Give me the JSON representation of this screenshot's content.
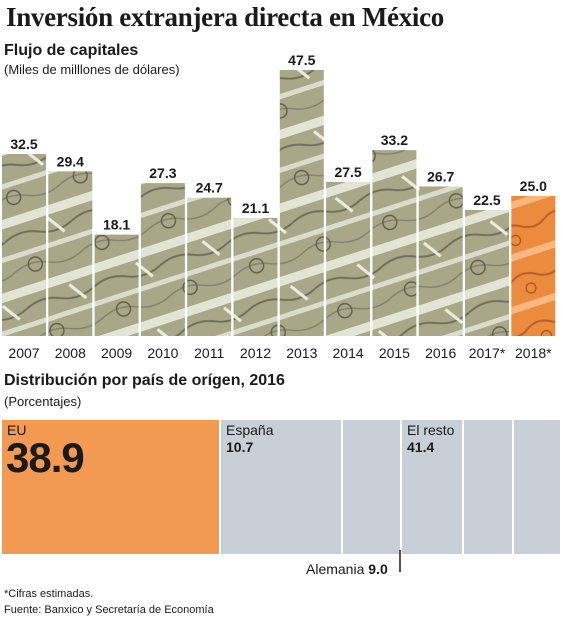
{
  "title": "Inversión extranjera directa en México",
  "chart_data": [
    {
      "type": "bar",
      "title": "Flujo de capitales",
      "subtitle": "(Miles de milllones de dólares)",
      "categories": [
        "2007",
        "2008",
        "2009",
        "2010",
        "2011",
        "2012",
        "2013",
        "2014",
        "2015",
        "2016",
        "2017*",
        "2018*"
      ],
      "values": [
        32.5,
        29.4,
        18.1,
        27.3,
        24.7,
        21.1,
        47.5,
        27.5,
        33.2,
        26.7,
        22.5,
        25.0
      ],
      "value_labels": [
        "32.5",
        "29.4",
        "18.1",
        "27.3",
        "24.7",
        "21.1",
        "47.5",
        "27.5",
        "33.2",
        "26.7",
        "22.5",
        "25.0"
      ],
      "highlight_index": 11,
      "bar_fill": "banknote photo",
      "highlight_color": "#f0883a",
      "ylim": [
        0,
        50
      ]
    },
    {
      "type": "treemap",
      "title": "Distribución por país de orígen, 2016",
      "subtitle": "(Porcentajes)",
      "segments": [
        {
          "name": "EU",
          "value": 38.9,
          "label": "38.9",
          "color": "#f39a52"
        },
        {
          "name": "España",
          "value": 10.7,
          "label": "10.7",
          "color": "#c8cfd7"
        },
        {
          "name": "Alemania",
          "value": 9.0,
          "label": "9.0",
          "color": "#c8cfd7"
        },
        {
          "name": "El resto",
          "value": 41.4,
          "label": "41.4",
          "color": "#c8cfd7"
        }
      ]
    }
  ],
  "footnote": "*Cifras estimadas.",
  "source": "Fuente: Banxico y Secretaría de Economía"
}
